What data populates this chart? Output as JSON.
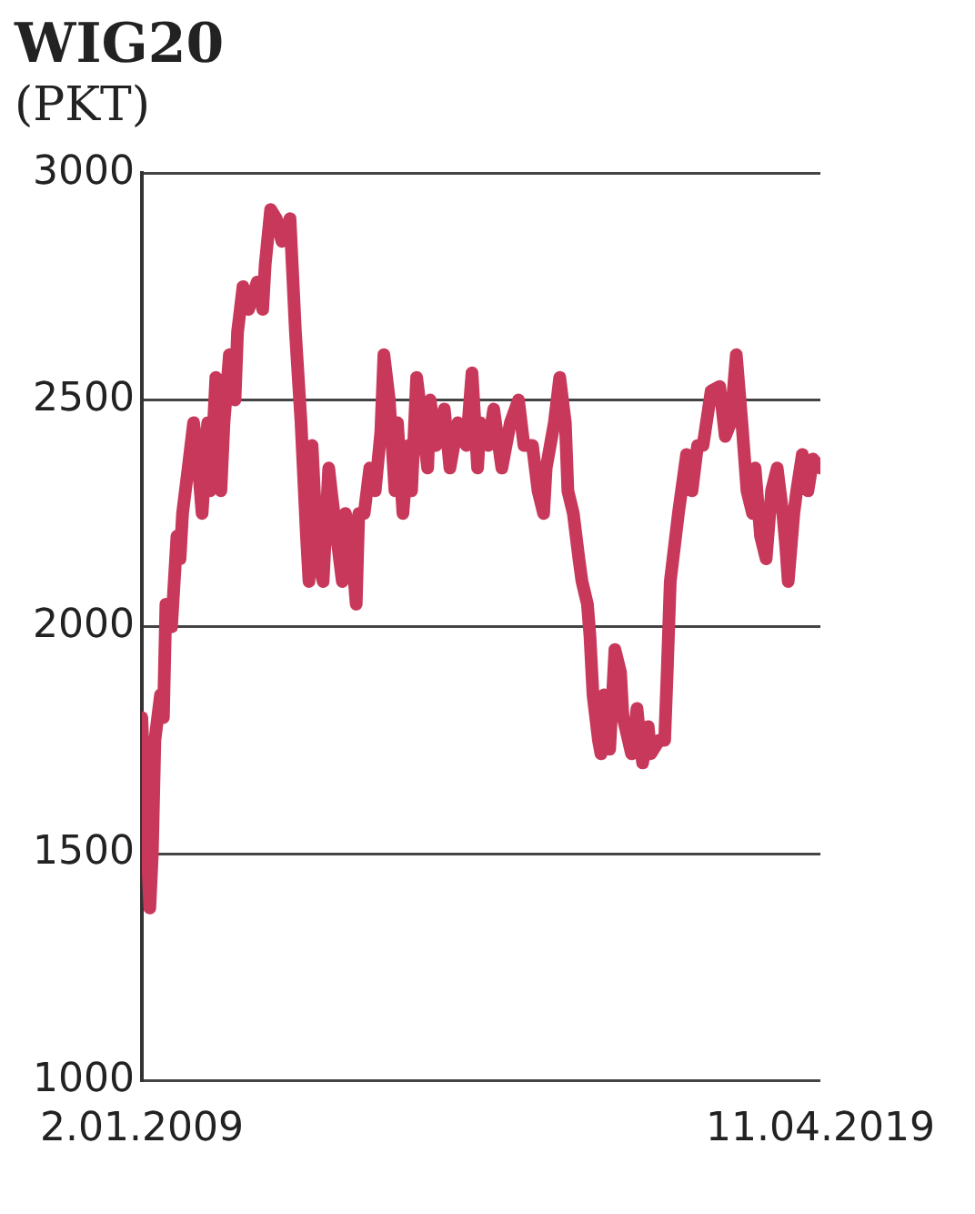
{
  "chart_data": {
    "type": "line",
    "title": "WIG20",
    "subtitle": "(PKT)",
    "x": [
      "2009-01-02",
      "2009-01-15",
      "2009-02-15",
      "2009-03-01",
      "2009-03-15",
      "2009-04-15",
      "2009-05-01",
      "2009-05-15",
      "2009-06-15",
      "2009-07-15",
      "2009-08-01",
      "2009-08-15",
      "2009-09-15",
      "2009-10-15",
      "2009-11-01",
      "2009-12-01",
      "2010-01-01",
      "2010-01-15",
      "2010-02-15",
      "2010-03-15",
      "2010-04-01",
      "2010-05-01",
      "2010-06-01",
      "2010-06-15",
      "2010-07-15",
      "2010-08-15",
      "2010-10-01",
      "2010-11-01",
      "2010-11-15",
      "2010-12-15",
      "2011-01-15",
      "2011-02-15",
      "2011-04-01",
      "2011-05-01",
      "2011-06-01",
      "2011-07-01",
      "2011-07-15",
      "2011-08-01",
      "2011-09-01",
      "2011-10-01",
      "2011-11-01",
      "2011-11-15",
      "2011-12-15",
      "2012-01-15",
      "2012-02-01",
      "2012-03-01",
      "2012-04-01",
      "2012-04-15",
      "2012-05-15",
      "2012-06-15",
      "2012-07-15",
      "2012-08-15",
      "2012-09-01",
      "2012-10-01",
      "2012-11-01",
      "2012-11-15",
      "2012-12-15",
      "2013-01-15",
      "2013-02-01",
      "2013-03-01",
      "2013-04-01",
      "2013-05-01",
      "2013-05-15",
      "2013-06-15",
      "2013-08-01",
      "2013-09-01",
      "2013-10-15",
      "2013-12-01",
      "2014-01-01",
      "2014-02-01",
      "2014-02-15",
      "2014-04-01",
      "2014-05-01",
      "2014-06-15",
      "2014-08-01",
      "2014-09-15",
      "2014-10-15",
      "2014-12-01",
      "2015-01-01",
      "2015-02-01",
      "2015-02-15",
      "2015-04-01",
      "2015-05-01",
      "2015-06-01",
      "2015-06-15",
      "2015-07-15",
      "2015-08-15",
      "2015-09-01",
      "2015-10-01",
      "2015-10-15",
      "2015-11-01",
      "2015-12-01",
      "2015-12-15",
      "2016-01-01",
      "2016-02-01",
      "2016-03-01",
      "2016-04-01",
      "2016-04-15",
      "2016-06-01",
      "2016-07-01",
      "2016-08-01",
      "2016-09-01",
      "2016-09-15",
      "2016-11-01",
      "2016-12-01",
      "2016-12-15",
      "2017-01-01",
      "2017-02-15",
      "2017-04-01",
      "2017-05-01",
      "2017-06-01",
      "2017-07-01",
      "2017-08-15",
      "2017-10-01",
      "2017-11-01",
      "2017-12-01",
      "2018-01-01",
      "2018-02-01",
      "2018-03-01",
      "2018-04-01",
      "2018-04-15",
      "2018-05-15",
      "2018-06-15",
      "2018-07-15",
      "2018-08-15",
      "2018-09-15",
      "2018-10-01",
      "2018-10-15",
      "2018-11-15",
      "2018-12-01",
      "2019-01-01",
      "2019-02-01",
      "2019-03-01",
      "2019-04-11"
    ],
    "series": [
      {
        "color": "#c8385a",
        "values": [
          1800,
          1650,
          1380,
          1500,
          1750,
          1850,
          1800,
          2050,
          2000,
          2200,
          2150,
          2250,
          2350,
          2450,
          2400,
          2250,
          2450,
          2300,
          2550,
          2300,
          2450,
          2600,
          2500,
          2650,
          2750,
          2700,
          2760,
          2700,
          2800,
          2920,
          2900,
          2850,
          2900,
          2650,
          2450,
          2200,
          2100,
          2400,
          2150,
          2100,
          2350,
          2300,
          2200,
          2100,
          2250,
          2200,
          2050,
          2250,
          2250,
          2350,
          2300,
          2430,
          2600,
          2500,
          2300,
          2450,
          2250,
          2400,
          2300,
          2550,
          2450,
          2350,
          2500,
          2400,
          2480,
          2350,
          2450,
          2400,
          2560,
          2350,
          2450,
          2400,
          2480,
          2350,
          2450,
          2500,
          2400,
          2400,
          2300,
          2250,
          2350,
          2450,
          2550,
          2450,
          2300,
          2250,
          2150,
          2100,
          2050,
          1980,
          1850,
          1750,
          1720,
          1850,
          1730,
          1950,
          1900,
          1800,
          1720,
          1820,
          1700,
          1780,
          1720,
          1750,
          1750,
          1900,
          2100,
          2250,
          2380,
          2300,
          2400,
          2400,
          2520,
          2530,
          2420,
          2450,
          2600,
          2450,
          2300,
          2250,
          2350,
          2200,
          2150,
          2300,
          2350,
          2250,
          2180,
          2100,
          2250,
          2300,
          2380,
          2300,
          2370,
          2350
        ]
      }
    ],
    "xlim": [
      "2009-01-02",
      "2019-04-11"
    ],
    "xticks": [
      {
        "value": "2009-01-02",
        "label": "2.01.2009"
      },
      {
        "value": "2019-04-11",
        "label": "11.04.2019"
      }
    ],
    "ylim": [
      1000,
      3000
    ],
    "yticks": [
      1000,
      1500,
      2000,
      2500,
      3000
    ],
    "grid": "y"
  }
}
